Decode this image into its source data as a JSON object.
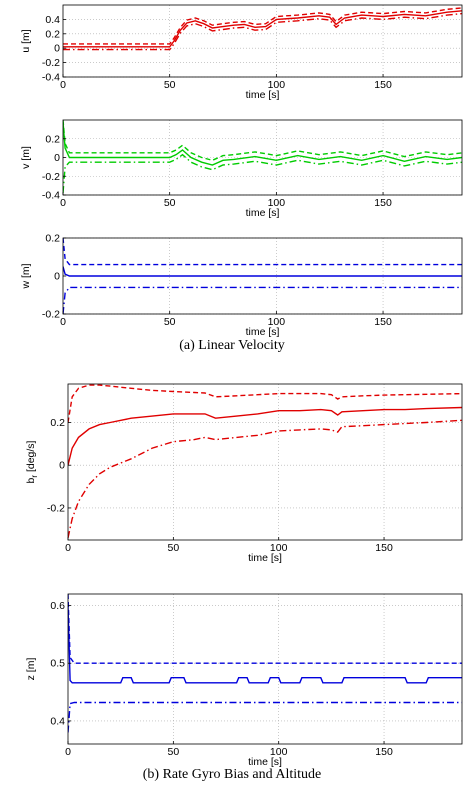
{
  "figure": {
    "captions": [
      "(a) Linear Velocity",
      "(b) Rate Gyro Bias and Altitude"
    ]
  },
  "chart_data": [
    {
      "type": "line",
      "panel": "u",
      "xlabel": "time [s]",
      "ylabel": "u [m]",
      "xlim": [
        0,
        187
      ],
      "ylim": [
        -0.4,
        0.6
      ],
      "xticks": [
        0,
        50,
        100,
        150
      ],
      "yticks": [
        -0.4,
        -0.2,
        0,
        0.2,
        0.4
      ],
      "grid": true,
      "color": "#e00000",
      "series": [
        {
          "style": "solid",
          "x": [
            0,
            50,
            52,
            55,
            58,
            62,
            66,
            70,
            75,
            80,
            85,
            90,
            95,
            100,
            110,
            120,
            125,
            128,
            132,
            140,
            150,
            160,
            170,
            180,
            187
          ],
          "y": [
            0.02,
            0.02,
            0.1,
            0.25,
            0.35,
            0.38,
            0.34,
            0.28,
            0.3,
            0.32,
            0.33,
            0.29,
            0.3,
            0.4,
            0.42,
            0.45,
            0.43,
            0.33,
            0.42,
            0.46,
            0.44,
            0.47,
            0.45,
            0.5,
            0.52
          ]
        },
        {
          "style": "dashed",
          "x": [
            0,
            50,
            52,
            55,
            58,
            62,
            66,
            70,
            75,
            80,
            85,
            90,
            95,
            100,
            110,
            120,
            125,
            128,
            132,
            140,
            150,
            160,
            170,
            180,
            187
          ],
          "y": [
            0.06,
            0.06,
            0.14,
            0.29,
            0.39,
            0.42,
            0.38,
            0.32,
            0.34,
            0.36,
            0.37,
            0.33,
            0.34,
            0.44,
            0.46,
            0.49,
            0.47,
            0.37,
            0.46,
            0.5,
            0.48,
            0.51,
            0.49,
            0.54,
            0.56
          ]
        },
        {
          "style": "dashdot",
          "x": [
            0,
            50,
            52,
            55,
            58,
            62,
            66,
            70,
            75,
            80,
            85,
            90,
            95,
            100,
            110,
            120,
            125,
            128,
            132,
            140,
            150,
            160,
            170,
            180,
            187
          ],
          "y": [
            -0.02,
            -0.02,
            0.06,
            0.21,
            0.31,
            0.34,
            0.3,
            0.24,
            0.26,
            0.28,
            0.29,
            0.25,
            0.26,
            0.36,
            0.38,
            0.41,
            0.39,
            0.29,
            0.38,
            0.42,
            0.4,
            0.43,
            0.41,
            0.46,
            0.48
          ]
        }
      ]
    },
    {
      "type": "line",
      "panel": "v",
      "xlabel": "time [s]",
      "ylabel": "v [m]",
      "xlim": [
        0,
        187
      ],
      "ylim": [
        -0.4,
        0.4
      ],
      "xticks": [
        0,
        50,
        100,
        150
      ],
      "yticks": [
        -0.4,
        -0.2,
        0,
        0.2
      ],
      "grid": true,
      "color": "#00cc00",
      "series": [
        {
          "style": "solid",
          "x": [
            0,
            1,
            3,
            50,
            53,
            56,
            60,
            65,
            70,
            75,
            80,
            90,
            100,
            110,
            120,
            130,
            140,
            150,
            160,
            170,
            180,
            187
          ],
          "y": [
            0.38,
            0.1,
            0.0,
            0.0,
            0.03,
            0.08,
            0.0,
            -0.05,
            -0.08,
            -0.03,
            -0.02,
            0.01,
            -0.03,
            0.02,
            -0.02,
            0.01,
            -0.03,
            0.02,
            -0.04,
            0.01,
            -0.02,
            0.0
          ]
        },
        {
          "style": "dashed",
          "x": [
            0,
            1,
            3,
            50,
            53,
            56,
            60,
            65,
            70,
            75,
            80,
            90,
            100,
            110,
            120,
            130,
            140,
            150,
            160,
            170,
            180,
            187
          ],
          "y": [
            0.4,
            0.15,
            0.05,
            0.05,
            0.08,
            0.13,
            0.05,
            0.0,
            -0.03,
            0.02,
            0.03,
            0.06,
            0.02,
            0.07,
            0.03,
            0.06,
            0.02,
            0.07,
            0.01,
            0.06,
            0.03,
            0.05
          ]
        },
        {
          "style": "dashdot",
          "x": [
            0,
            1,
            3,
            50,
            53,
            56,
            60,
            65,
            70,
            75,
            80,
            90,
            100,
            110,
            120,
            130,
            140,
            150,
            160,
            170,
            180,
            187
          ],
          "y": [
            -0.38,
            -0.1,
            -0.05,
            -0.05,
            -0.02,
            0.03,
            -0.05,
            -0.1,
            -0.13,
            -0.08,
            -0.07,
            -0.04,
            -0.08,
            -0.03,
            -0.07,
            -0.04,
            -0.08,
            -0.03,
            -0.09,
            -0.04,
            -0.07,
            -0.05
          ]
        }
      ]
    },
    {
      "type": "line",
      "panel": "w",
      "xlabel": "time [s]",
      "ylabel": "w [m]",
      "xlim": [
        0,
        187
      ],
      "ylim": [
        -0.2,
        0.2
      ],
      "xticks": [
        0,
        50,
        100,
        150
      ],
      "yticks": [
        -0.2,
        0,
        0.2
      ],
      "grid": true,
      "color": "#0000dd",
      "series": [
        {
          "style": "solid",
          "x": [
            0,
            1,
            3,
            50,
            100,
            150,
            187
          ],
          "y": [
            0.05,
            0.01,
            0.0,
            0.0,
            0.0,
            0.0,
            0.0
          ]
        },
        {
          "style": "dashed",
          "x": [
            0,
            1,
            3,
            50,
            100,
            150,
            187
          ],
          "y": [
            0.2,
            0.09,
            0.06,
            0.06,
            0.06,
            0.06,
            0.06
          ]
        },
        {
          "style": "dashdot",
          "x": [
            0,
            1,
            3,
            50,
            100,
            150,
            187
          ],
          "y": [
            -0.2,
            -0.09,
            -0.06,
            -0.06,
            -0.06,
            -0.06,
            -0.06
          ]
        }
      ]
    },
    {
      "type": "line",
      "panel": "b_r",
      "xlabel": "time [s]",
      "ylabel": "b_r [deg/s]",
      "xlim": [
        0,
        187
      ],
      "ylim": [
        -0.35,
        0.38
      ],
      "xticks": [
        0,
        50,
        100,
        150
      ],
      "yticks": [
        -0.2,
        0,
        0.2
      ],
      "grid": true,
      "color": "#e00000",
      "series": [
        {
          "style": "solid",
          "x": [
            0,
            2,
            5,
            10,
            15,
            20,
            30,
            40,
            50,
            60,
            65,
            70,
            80,
            90,
            100,
            110,
            120,
            125,
            128,
            130,
            140,
            150,
            160,
            170,
            187
          ],
          "y": [
            0.0,
            0.08,
            0.13,
            0.17,
            0.19,
            0.2,
            0.22,
            0.23,
            0.24,
            0.24,
            0.24,
            0.22,
            0.23,
            0.24,
            0.255,
            0.255,
            0.26,
            0.255,
            0.235,
            0.25,
            0.255,
            0.26,
            0.26,
            0.265,
            0.27
          ]
        },
        {
          "style": "dashed",
          "x": [
            0,
            2,
            5,
            10,
            15,
            20,
            30,
            40,
            50,
            60,
            65,
            70,
            80,
            90,
            100,
            110,
            120,
            125,
            128,
            130,
            140,
            150,
            160,
            170,
            187
          ],
          "y": [
            0.2,
            0.32,
            0.36,
            0.375,
            0.375,
            0.37,
            0.36,
            0.35,
            0.345,
            0.34,
            0.338,
            0.32,
            0.325,
            0.33,
            0.335,
            0.335,
            0.335,
            0.33,
            0.31,
            0.32,
            0.325,
            0.328,
            0.33,
            0.332,
            0.335
          ]
        },
        {
          "style": "dashdot",
          "x": [
            0,
            2,
            5,
            10,
            15,
            20,
            30,
            40,
            50,
            60,
            65,
            70,
            80,
            90,
            100,
            110,
            120,
            125,
            128,
            130,
            140,
            150,
            160,
            170,
            187
          ],
          "y": [
            -0.34,
            -0.25,
            -0.17,
            -0.09,
            -0.04,
            -0.01,
            0.03,
            0.08,
            0.11,
            0.12,
            0.13,
            0.12,
            0.13,
            0.14,
            0.16,
            0.165,
            0.17,
            0.165,
            0.155,
            0.18,
            0.185,
            0.19,
            0.195,
            0.2,
            0.21
          ]
        }
      ]
    },
    {
      "type": "line",
      "panel": "z",
      "xlabel": "time [s]",
      "ylabel": "z [m]",
      "xlim": [
        0,
        187
      ],
      "ylim": [
        0.36,
        0.62
      ],
      "xticks": [
        0,
        50,
        100,
        150
      ],
      "yticks": [
        0.4,
        0.5,
        0.6
      ],
      "grid": true,
      "color": "#0000dd",
      "series": [
        {
          "style": "solid",
          "x": [
            0,
            1,
            2,
            25,
            26,
            30,
            31,
            48,
            49,
            55,
            56,
            80,
            81,
            85,
            86,
            95,
            96,
            100,
            101,
            110,
            111,
            120,
            121,
            130,
            131,
            160,
            161,
            170,
            171,
            187
          ],
          "y": [
            0.6,
            0.47,
            0.466,
            0.466,
            0.475,
            0.475,
            0.466,
            0.466,
            0.475,
            0.475,
            0.466,
            0.466,
            0.475,
            0.475,
            0.466,
            0.466,
            0.475,
            0.475,
            0.466,
            0.466,
            0.475,
            0.475,
            0.466,
            0.466,
            0.475,
            0.475,
            0.466,
            0.466,
            0.475,
            0.475
          ]
        },
        {
          "style": "dashed",
          "x": [
            0,
            1,
            3,
            187
          ],
          "y": [
            0.62,
            0.51,
            0.5,
            0.5
          ]
        },
        {
          "style": "dashdot",
          "x": [
            0,
            1,
            3,
            187
          ],
          "y": [
            0.38,
            0.43,
            0.432,
            0.432
          ]
        }
      ]
    }
  ]
}
